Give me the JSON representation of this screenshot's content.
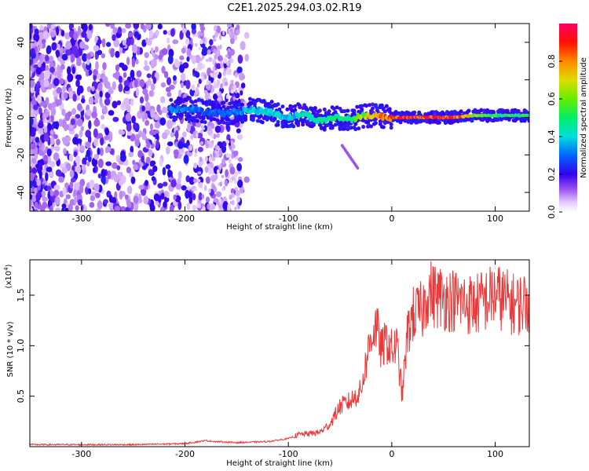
{
  "title": "C2E1.2025.294.03.02.R19",
  "chart_data": [
    {
      "type": "heatmap",
      "xlabel": "Height of straight line (km)",
      "ylabel": "Frequency (Hz)",
      "xlim": [
        -350,
        133
      ],
      "ylim": [
        -50,
        50
      ],
      "xticks": [
        "-300",
        "-200",
        "-100",
        "0",
        "100"
      ],
      "xtick_values": [
        -300,
        -200,
        -100,
        0,
        100
      ],
      "yticks": [
        "-40",
        "-20",
        "0",
        "20",
        "40"
      ],
      "ytick_values": [
        -40,
        -20,
        0,
        20,
        40
      ],
      "colorbar": {
        "label": "Normalized spectral amplitude",
        "range": [
          0,
          1
        ],
        "ticks": [
          "0.0",
          "0.2",
          "0.4",
          "0.6",
          "0.8"
        ],
        "tick_values": [
          0,
          0.2,
          0.4,
          0.6,
          0.8
        ]
      },
      "ridge": {
        "x": [
          -215,
          -200,
          -180,
          -160,
          -140,
          -120,
          -100,
          -85,
          -70,
          -55,
          -40,
          -25,
          -15,
          -5,
          10,
          30,
          60,
          80,
          100,
          133
        ],
        "y": [
          4,
          5,
          3,
          2,
          4,
          3,
          0,
          2,
          -2,
          0,
          -1,
          1,
          1,
          0,
          0,
          0,
          0,
          1,
          1,
          1
        ],
        "amplitude": [
          0.35,
          0.35,
          0.3,
          0.3,
          0.4,
          0.45,
          0.4,
          0.45,
          0.5,
          0.5,
          0.55,
          0.7,
          0.85,
          0.9,
          0.95,
          0.95,
          0.95,
          0.7,
          0.55,
          0.55
        ]
      }
    },
    {
      "type": "line",
      "xlabel": "Height of straight line (km)",
      "ylabel": "SNR (10 * v/v)",
      "scale_label": "(x10",
      "scale_exp": "4",
      "scale_close": ")",
      "xlim": [
        -350,
        133
      ],
      "ylim": [
        0,
        1.85
      ],
      "xticks": [
        "-300",
        "-200",
        "-100",
        "0",
        "100"
      ],
      "xtick_values": [
        -300,
        -200,
        -100,
        0,
        100
      ],
      "yticks": [
        "0.5",
        "1.0",
        "1.5"
      ],
      "ytick_values": [
        0.5,
        1.0,
        1.5
      ],
      "series": [
        {
          "color": "#e83a3a",
          "x": [
            -350,
            -300,
            -250,
            -200,
            -180,
            -170,
            -150,
            -120,
            -100,
            -90,
            -80,
            -70,
            -60,
            -50,
            -40,
            -30,
            -20,
            -15,
            -10,
            -5,
            0,
            5,
            10,
            15,
            20,
            30,
            35,
            40,
            60,
            80,
            100,
            120,
            133
          ],
          "y": [
            0.02,
            0.02,
            0.02,
            0.03,
            0.06,
            0.05,
            0.04,
            0.05,
            0.08,
            0.12,
            0.13,
            0.14,
            0.22,
            0.4,
            0.45,
            0.55,
            1.1,
            1.2,
            0.95,
            1.05,
            0.95,
            1.0,
            0.5,
            1.1,
            1.3,
            1.35,
            1.55,
            1.5,
            1.45,
            1.4,
            1.5,
            1.4,
            1.45
          ]
        }
      ]
    }
  ]
}
